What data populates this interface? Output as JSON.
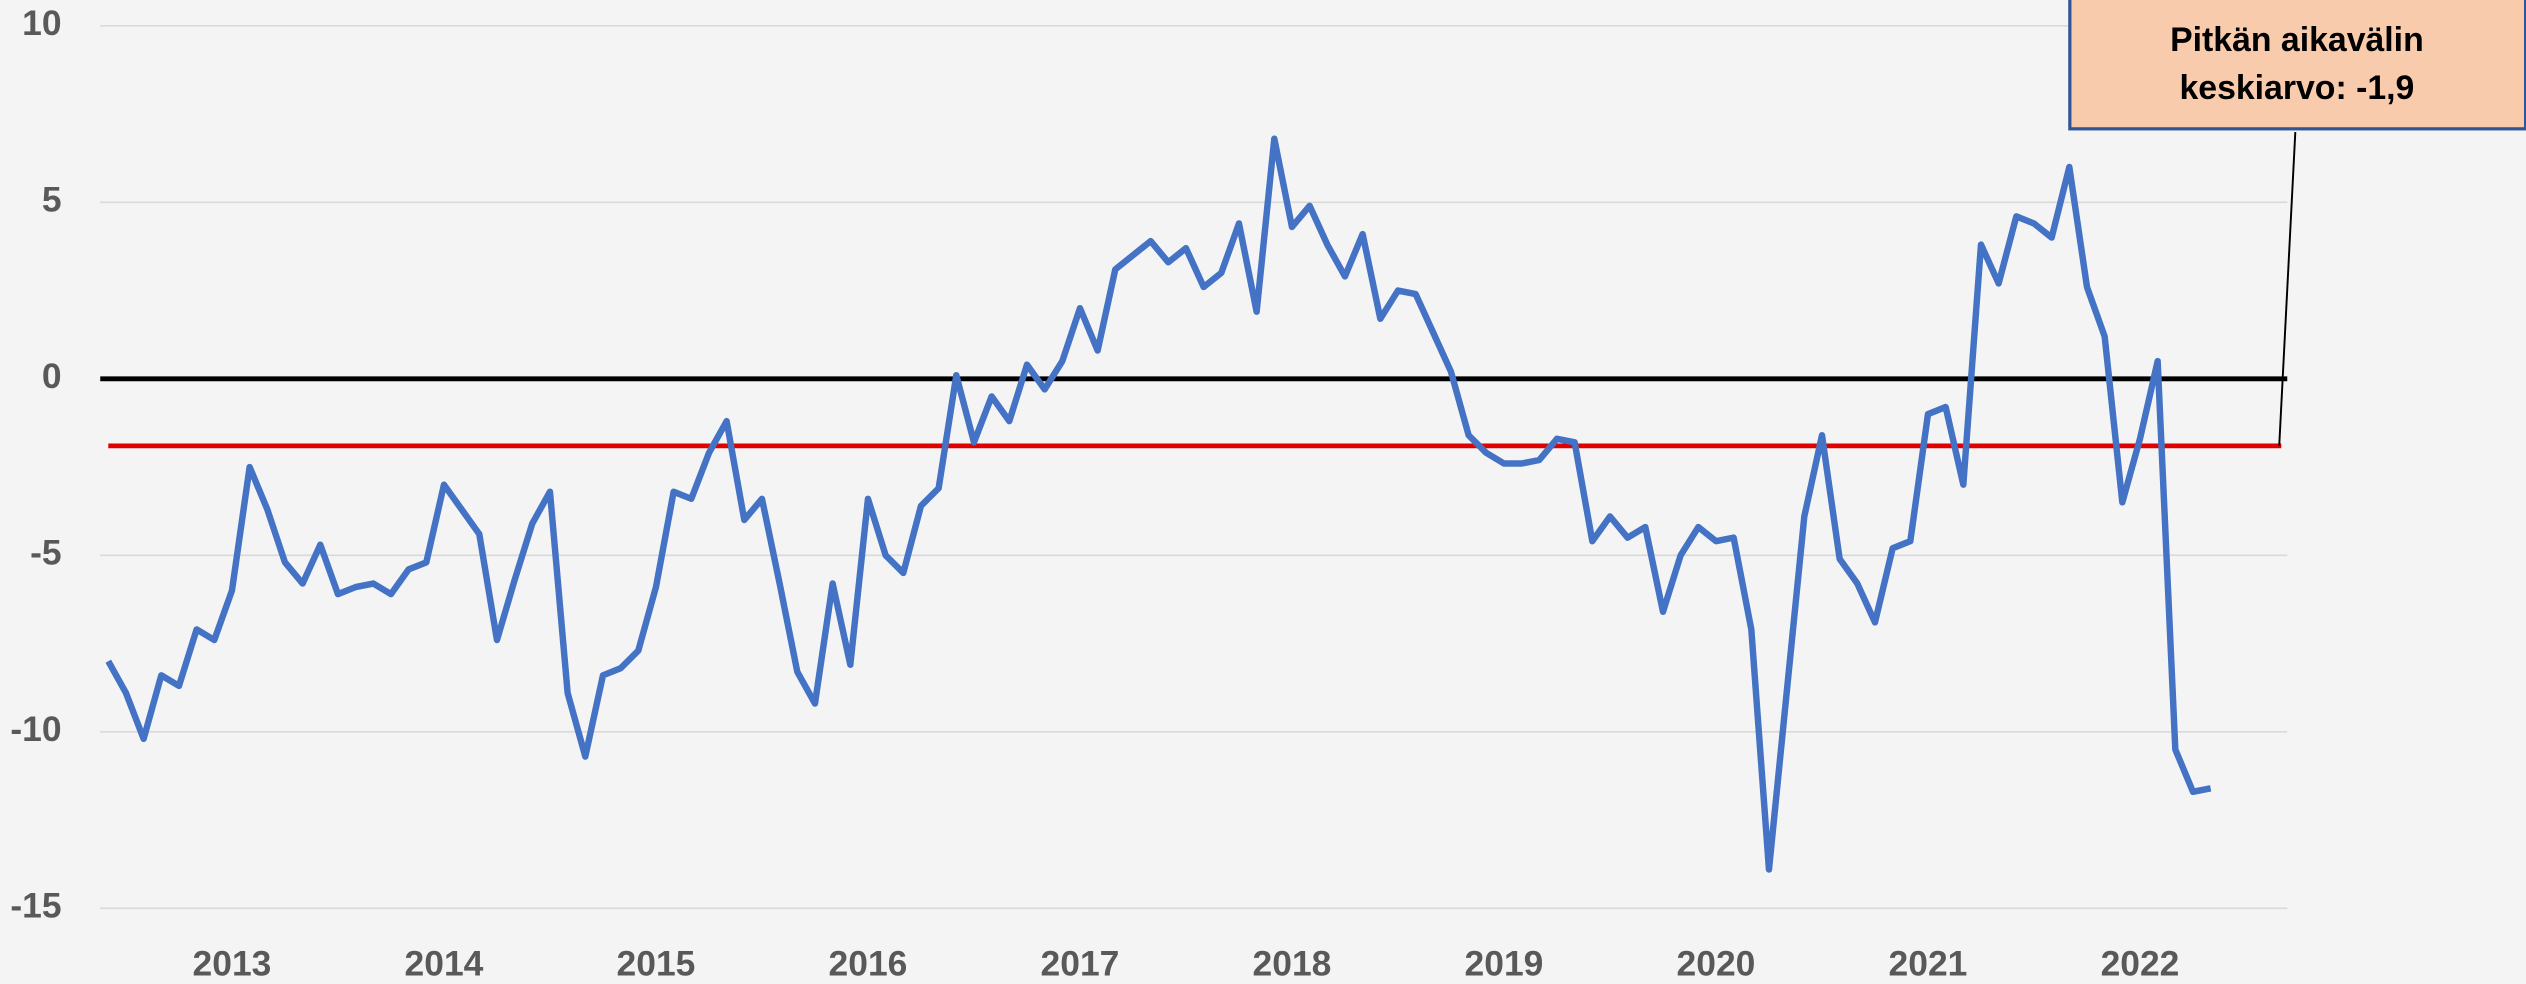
{
  "chart_data": {
    "type": "line",
    "categories": [
      null,
      null,
      null,
      null,
      null,
      null,
      null,
      "2013",
      null,
      null,
      null,
      null,
      null,
      null,
      null,
      null,
      null,
      null,
      null,
      "2014",
      null,
      null,
      null,
      null,
      null,
      null,
      null,
      null,
      null,
      null,
      null,
      "2015",
      null,
      null,
      null,
      null,
      null,
      null,
      null,
      null,
      null,
      null,
      null,
      "2016",
      null,
      null,
      null,
      null,
      null,
      null,
      null,
      null,
      null,
      null,
      null,
      "2017",
      null,
      null,
      null,
      null,
      null,
      null,
      null,
      null,
      null,
      null,
      null,
      "2018",
      null,
      null,
      null,
      null,
      null,
      null,
      null,
      null,
      null,
      null,
      null,
      "2019",
      null,
      null,
      null,
      null,
      null,
      null,
      null,
      null,
      null,
      null,
      null,
      "2020",
      null,
      null,
      null,
      null,
      null,
      null,
      null,
      null,
      null,
      null,
      null,
      "2021",
      null,
      null,
      null,
      null,
      null,
      null,
      null,
      null,
      null,
      null,
      null,
      "2022",
      null,
      null,
      null,
      null,
      null,
      null,
      null,
      null
    ],
    "series": [
      {
        "color": "#4472c4",
        "values": [
          -8.0,
          -8.9,
          -10.2,
          -8.4,
          -8.7,
          -7.1,
          -7.4,
          -6.0,
          -2.5,
          -3.7,
          -5.2,
          -5.8,
          -4.7,
          -6.1,
          -5.9,
          -5.8,
          -6.1,
          -5.4,
          -5.2,
          -3.0,
          -3.7,
          -4.4,
          -7.4,
          -5.7,
          -4.1,
          -3.2,
          -8.9,
          -10.7,
          -8.4,
          -8.2,
          -7.7,
          -5.9,
          -3.2,
          -3.4,
          -2.1,
          -1.2,
          -4.0,
          -3.4,
          -5.8,
          -8.3,
          -9.2,
          -5.8,
          -8.1,
          -3.4,
          -5.0,
          -5.5,
          -3.6,
          -3.1,
          0.1,
          -1.8,
          -0.5,
          -1.2,
          0.4,
          -0.3,
          0.5,
          2.0,
          0.8,
          3.1,
          3.5,
          3.9,
          3.3,
          3.7,
          2.6,
          3.0,
          4.4,
          1.9,
          6.8,
          4.3,
          4.9,
          3.8,
          2.9,
          4.1,
          1.7,
          2.5,
          2.4,
          1.3,
          0.2,
          -1.6,
          -2.1,
          -2.4,
          -2.4,
          -2.3,
          -1.7,
          -1.8,
          -4.6,
          -3.9,
          -4.5,
          -4.2,
          -6.6,
          -5.0,
          -4.2,
          -4.6,
          -4.5,
          -7.1,
          -13.9,
          -8.9,
          -3.9,
          -1.6,
          -5.1,
          -5.8,
          -6.9,
          -4.8,
          -4.6,
          -1.0,
          -0.8,
          -3.0,
          3.8,
          2.7,
          4.6,
          4.4,
          4.0,
          6.0,
          2.6,
          1.2,
          -3.5,
          -1.7,
          0.5,
          -10.5,
          -11.7,
          -11.6,
          null,
          null,
          null,
          null
        ]
      },
      {
        "color": "#e00000",
        "values": [
          -1.9,
          -1.9,
          -1.9,
          -1.9,
          -1.9,
          -1.9,
          -1.9,
          -1.9,
          -1.9,
          -1.9,
          -1.9,
          -1.9,
          -1.9,
          -1.9,
          -1.9,
          -1.9,
          -1.9,
          -1.9,
          -1.9,
          -1.9,
          -1.9,
          -1.9,
          -1.9,
          -1.9,
          -1.9,
          -1.9,
          -1.9,
          -1.9,
          -1.9,
          -1.9,
          -1.9,
          -1.9,
          -1.9,
          -1.9,
          -1.9,
          -1.9,
          -1.9,
          -1.9,
          -1.9,
          -1.9,
          -1.9,
          -1.9,
          -1.9,
          -1.9,
          -1.9,
          -1.9,
          -1.9,
          -1.9,
          -1.9,
          -1.9,
          -1.9,
          -1.9,
          -1.9,
          -1.9,
          -1.9,
          -1.9,
          -1.9,
          -1.9,
          -1.9,
          -1.9,
          -1.9,
          -1.9,
          -1.9,
          -1.9,
          -1.9,
          -1.9,
          -1.9,
          -1.9,
          -1.9,
          -1.9,
          -1.9,
          -1.9,
          -1.9,
          -1.9,
          -1.9,
          -1.9,
          -1.9,
          -1.9,
          -1.9,
          -1.9,
          -1.9,
          -1.9,
          -1.9,
          -1.9,
          -1.9,
          -1.9,
          -1.9,
          -1.9,
          -1.9,
          -1.9,
          -1.9,
          -1.9,
          -1.9,
          -1.9,
          -1.9,
          -1.9,
          -1.9,
          -1.9,
          -1.9,
          -1.9,
          -1.9,
          -1.9,
          -1.9,
          -1.9,
          -1.9,
          -1.9,
          -1.9,
          -1.9,
          -1.9,
          -1.9,
          -1.9,
          -1.9,
          -1.9,
          -1.9,
          -1.9,
          -1.9,
          -1.9,
          -1.9,
          -1.9,
          -1.9,
          -1.9,
          -1.9,
          -1.9,
          -1.9
        ]
      }
    ],
    "ylim": [
      -15,
      10
    ],
    "yticks": [
      -15,
      -10,
      -5,
      0,
      5,
      10
    ],
    "grid": true,
    "zero_line_color": "#000000",
    "annotation": [
      "Pitkän aikavälin",
      "keskiarvo: -1,9"
    ]
  }
}
